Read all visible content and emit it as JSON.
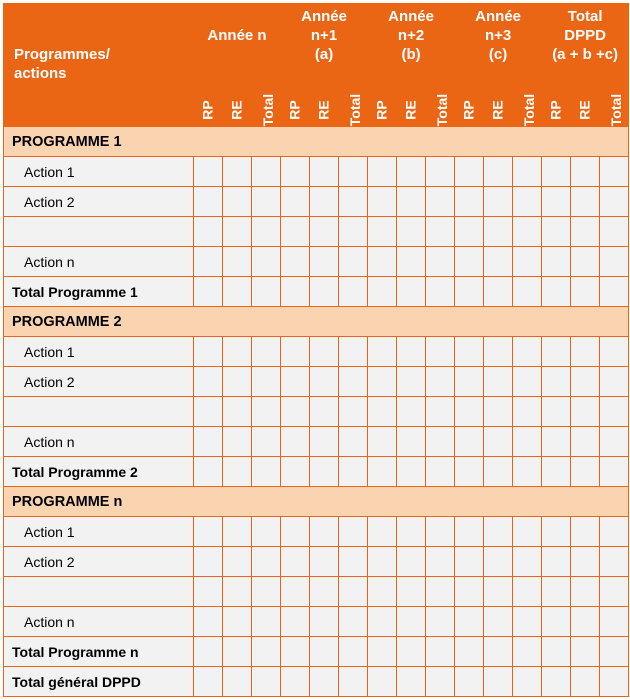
{
  "colors": {
    "header_bg": "#ea6514",
    "header_fg": "#ffffff",
    "section_bg": "#fad3b0",
    "body_bg": "#f2f2f2",
    "border": "#ea6514",
    "text": "#000000"
  },
  "table": {
    "type": "table",
    "header": {
      "row_label_line1": "Programmes/",
      "row_label_line2": "actions",
      "year_groups": [
        {
          "line1": "Année n",
          "line2": "",
          "line3": ""
        },
        {
          "line1": "Année",
          "line2": "n+1",
          "line3": "(a)"
        },
        {
          "line1": "Année",
          "line2": "n+2",
          "line3": "(b)"
        },
        {
          "line1": "Année",
          "line2": "n+3",
          "line3": "(c)"
        },
        {
          "line1": "Total",
          "line2": "DPPD",
          "line3": "(a + b +c)"
        }
      ],
      "sub_cols": [
        "RP",
        "RE",
        "Total"
      ]
    },
    "rows": [
      {
        "kind": "section",
        "label": "PROGRAMME 1"
      },
      {
        "kind": "action",
        "label": "Action 1"
      },
      {
        "kind": "action",
        "label": "Action 2"
      },
      {
        "kind": "action",
        "label": ""
      },
      {
        "kind": "action",
        "label": "Action n"
      },
      {
        "kind": "total",
        "label": "Total Programme 1"
      },
      {
        "kind": "section",
        "label": "PROGRAMME 2"
      },
      {
        "kind": "action",
        "label": "Action 1"
      },
      {
        "kind": "action",
        "label": "Action 2"
      },
      {
        "kind": "action",
        "label": ""
      },
      {
        "kind": "action",
        "label": "Action n"
      },
      {
        "kind": "total",
        "label": "Total Programme 2"
      },
      {
        "kind": "section",
        "label": "PROGRAMME n"
      },
      {
        "kind": "action",
        "label": "Action 1"
      },
      {
        "kind": "action",
        "label": "Action 2"
      },
      {
        "kind": "action",
        "label": ""
      },
      {
        "kind": "action",
        "label": "Action n"
      },
      {
        "kind": "total",
        "label": "Total Programme n"
      },
      {
        "kind": "total",
        "label": "Total général DPPD"
      }
    ],
    "data_col_count": 15
  }
}
